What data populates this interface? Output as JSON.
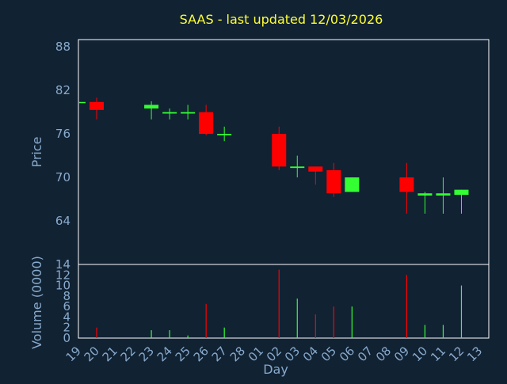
{
  "chart_data": {
    "type": "candlestick",
    "title": "SAAS - last updated 12/03/2026",
    "xlabel": "Day",
    "ylabel": "Price",
    "volume_label": "Volume (0000)",
    "grid": true,
    "price_axis": {
      "ylim": [
        58,
        89
      ],
      "ticks": [
        64,
        70,
        76,
        82,
        88
      ]
    },
    "volume_axis": {
      "ylim": [
        0,
        14
      ],
      "ticks": [
        0,
        2,
        4,
        6,
        8,
        10,
        12,
        14
      ]
    },
    "x_labels": [
      "19",
      "20",
      "21",
      "22",
      "23",
      "24",
      "25",
      "26",
      "27",
      "28",
      "01",
      "02",
      "03",
      "04",
      "05",
      "06",
      "07",
      "08",
      "09",
      "10",
      "11",
      "12",
      "13"
    ],
    "candles": [
      {
        "day": "19",
        "open": 80.4,
        "high": 80.4,
        "low": 80.4,
        "close": 80.4
      },
      {
        "day": "20",
        "open": 80.4,
        "high": 81.0,
        "low": 78.0,
        "close": 79.3
      },
      {
        "day": "23",
        "open": 79.5,
        "high": 80.5,
        "low": 78.0,
        "close": 80.0
      },
      {
        "day": "24",
        "open": 78.8,
        "high": 79.5,
        "low": 78.0,
        "close": 79.0
      },
      {
        "day": "25",
        "open": 78.8,
        "high": 80.0,
        "low": 78.0,
        "close": 79.0
      },
      {
        "day": "26",
        "open": 79.0,
        "high": 80.0,
        "low": 75.8,
        "close": 76.0
      },
      {
        "day": "27",
        "open": 75.8,
        "high": 77.0,
        "low": 75.0,
        "close": 76.0
      },
      {
        "day": "02",
        "open": 76.0,
        "high": 77.0,
        "low": 71.0,
        "close": 71.5
      },
      {
        "day": "03",
        "open": 71.3,
        "high": 73.0,
        "low": 70.0,
        "close": 71.5
      },
      {
        "day": "04",
        "open": 71.5,
        "high": 71.5,
        "low": 69.0,
        "close": 70.8
      },
      {
        "day": "05",
        "open": 71.0,
        "high": 72.0,
        "low": 67.3,
        "close": 67.8
      },
      {
        "day": "06",
        "open": 68.0,
        "high": 70.0,
        "low": 68.0,
        "close": 70.0
      },
      {
        "day": "09",
        "open": 70.0,
        "high": 72.0,
        "low": 65.0,
        "close": 68.0
      },
      {
        "day": "10",
        "open": 67.5,
        "high": 68.0,
        "low": 65.0,
        "close": 67.8
      },
      {
        "day": "11",
        "open": 67.5,
        "high": 70.0,
        "low": 65.0,
        "close": 67.8
      },
      {
        "day": "12",
        "open": 67.6,
        "high": 68.3,
        "low": 65.0,
        "close": 68.3
      }
    ],
    "volumes": [
      {
        "day": "19",
        "value": 0
      },
      {
        "day": "20",
        "value": 2.0
      },
      {
        "day": "23",
        "value": 1.5
      },
      {
        "day": "24",
        "value": 1.5
      },
      {
        "day": "25",
        "value": 0.5
      },
      {
        "day": "26",
        "value": 6.5
      },
      {
        "day": "27",
        "value": 2.0
      },
      {
        "day": "02",
        "value": 13.0
      },
      {
        "day": "03",
        "value": 7.5
      },
      {
        "day": "04",
        "value": 4.5
      },
      {
        "day": "05",
        "value": 6.0
      },
      {
        "day": "06",
        "value": 6.0
      },
      {
        "day": "09",
        "value": 12.0
      },
      {
        "day": "10",
        "value": 2.5
      },
      {
        "day": "11",
        "value": 2.5
      },
      {
        "day": "12",
        "value": 10.0
      }
    ],
    "colors": {
      "background": "#112233",
      "plot_background": "#112233",
      "grid": "#FFFFFF",
      "up": "#33FF33",
      "down": "#FF0000",
      "axis_text": "#88AACC",
      "title": "#FFFF33"
    }
  }
}
